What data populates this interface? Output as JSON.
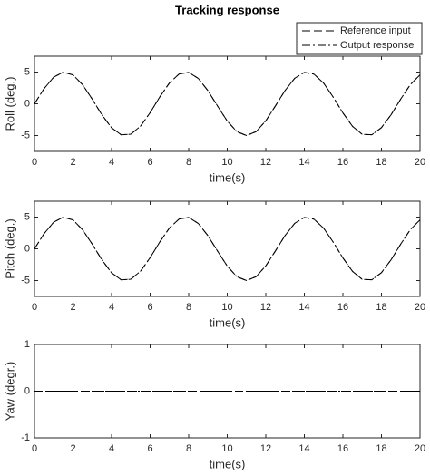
{
  "chart_data": [
    {
      "type": "line",
      "title": "Tracking response",
      "xlabel": "time(s)",
      "ylabel": "Roll (deg.)",
      "xlim": [
        0,
        20
      ],
      "ylim": [
        -7.5,
        7.5
      ],
      "xticks": [
        0,
        2,
        4,
        6,
        8,
        10,
        12,
        14,
        16,
        18,
        20
      ],
      "yticks": [
        -5,
        0,
        5
      ],
      "legend": "upper right",
      "x": [
        0,
        0.5,
        1,
        1.5,
        2,
        2.5,
        3,
        3.5,
        4,
        4.5,
        5,
        5.5,
        6,
        6.5,
        7,
        7.5,
        8,
        8.5,
        9,
        9.5,
        10,
        10.5,
        11,
        11.5,
        12,
        12.5,
        13,
        13.5,
        14,
        14.5,
        15,
        15.5,
        16,
        16.5,
        17,
        17.5,
        18,
        18.5,
        19,
        19.5,
        20
      ],
      "series": [
        {
          "name": "Reference input",
          "color": "#000000",
          "dash": "dashed",
          "values": [
            0,
            2.4,
            4.21,
            4.99,
            4.55,
            2.99,
            0.71,
            -1.75,
            -3.78,
            -4.89,
            -4.79,
            -3.53,
            -1.4,
            1.08,
            3.28,
            4.69,
            4.95,
            3.99,
            2.06,
            -0.38,
            -2.72,
            -4.39,
            -5.0,
            -4.38,
            -2.68,
            -0.33,
            2.1,
            4.02,
            4.95,
            4.67,
            3.25,
            1.04,
            -1.44,
            -3.56,
            -4.81,
            -4.88,
            -3.75,
            -1.72,
            0.75,
            3.03,
            4.56
          ]
        },
        {
          "name": "Output response",
          "color": "#000000",
          "dash": "dashdot",
          "values": [
            0,
            2.4,
            4.21,
            4.99,
            4.55,
            2.99,
            0.71,
            -1.75,
            -3.78,
            -4.89,
            -4.79,
            -3.53,
            -1.4,
            1.08,
            3.28,
            4.69,
            4.95,
            3.99,
            2.06,
            -0.38,
            -2.72,
            -4.39,
            -5.0,
            -4.38,
            -2.68,
            -0.33,
            2.1,
            4.02,
            4.95,
            4.67,
            3.25,
            1.04,
            -1.44,
            -3.56,
            -4.81,
            -4.88,
            -3.75,
            -1.72,
            0.75,
            3.03,
            4.56
          ]
        }
      ]
    },
    {
      "type": "line",
      "xlabel": "time(s)",
      "ylabel": "Pitch (deg.)",
      "xlim": [
        0,
        20
      ],
      "ylim": [
        -7.5,
        7.5
      ],
      "xticks": [
        0,
        2,
        4,
        6,
        8,
        10,
        12,
        14,
        16,
        18,
        20
      ],
      "yticks": [
        -5,
        0,
        5
      ],
      "x": [
        0,
        0.5,
        1,
        1.5,
        2,
        2.5,
        3,
        3.5,
        4,
        4.5,
        5,
        5.5,
        6,
        6.5,
        7,
        7.5,
        8,
        8.5,
        9,
        9.5,
        10,
        10.5,
        11,
        11.5,
        12,
        12.5,
        13,
        13.5,
        14,
        14.5,
        15,
        15.5,
        16,
        16.5,
        17,
        17.5,
        18,
        18.5,
        19,
        19.5,
        20
      ],
      "series": [
        {
          "color": "#000000",
          "dash": "dashed",
          "values": [
            0,
            2.4,
            4.21,
            4.99,
            4.55,
            2.99,
            0.71,
            -1.75,
            -3.78,
            -4.89,
            -4.79,
            -3.53,
            -1.4,
            1.08,
            3.28,
            4.69,
            4.95,
            3.99,
            2.06,
            -0.38,
            -2.72,
            -4.39,
            -5.0,
            -4.38,
            -2.68,
            -0.33,
            2.1,
            4.02,
            4.95,
            4.67,
            3.25,
            1.04,
            -1.44,
            -3.56,
            -4.81,
            -4.88,
            -3.75,
            -1.72,
            0.75,
            3.03,
            4.56
          ]
        },
        {
          "color": "#000000",
          "dash": "dashdot",
          "values": [
            0,
            2.4,
            4.21,
            4.99,
            4.55,
            2.99,
            0.71,
            -1.75,
            -3.78,
            -4.89,
            -4.79,
            -3.53,
            -1.4,
            1.08,
            3.28,
            4.69,
            4.95,
            3.99,
            2.06,
            -0.38,
            -2.72,
            -4.39,
            -5.0,
            -4.38,
            -2.68,
            -0.33,
            2.1,
            4.02,
            4.95,
            4.67,
            3.25,
            1.04,
            -1.44,
            -3.56,
            -4.81,
            -4.88,
            -3.75,
            -1.72,
            0.75,
            3.03,
            4.56
          ]
        }
      ]
    },
    {
      "type": "line",
      "xlabel": "time(s)",
      "ylabel": "Yaw (degr.)",
      "xlim": [
        0,
        20
      ],
      "ylim": [
        -1,
        1
      ],
      "xticks": [
        0,
        2,
        4,
        6,
        8,
        10,
        12,
        14,
        16,
        18,
        20
      ],
      "yticks": [
        -1,
        0,
        1
      ],
      "x": [
        0,
        0.5,
        1,
        1.5,
        2,
        2.5,
        3,
        3.5,
        4,
        4.5,
        5,
        5.5,
        6,
        6.5,
        7,
        7.5,
        8,
        8.5,
        9,
        9.5,
        10,
        10.5,
        11,
        11.5,
        12,
        12.5,
        13,
        13.5,
        14,
        14.5,
        15,
        15.5,
        16,
        16.5,
        17,
        17.5,
        18,
        18.5,
        19,
        19.5,
        20
      ],
      "series": [
        {
          "color": "#000000",
          "dash": "dashed",
          "values": [
            0,
            0,
            0,
            0,
            0,
            0,
            0,
            0,
            0,
            0,
            0,
            0,
            0,
            0,
            0,
            0,
            0,
            0,
            0,
            0,
            0,
            0,
            0,
            0,
            0,
            0,
            0,
            0,
            0,
            0,
            0,
            0,
            0,
            0,
            0,
            0,
            0,
            0,
            0,
            0,
            0
          ]
        },
        {
          "color": "#000000",
          "dash": "dashdot",
          "values": [
            0,
            0,
            0,
            0,
            0,
            0,
            0,
            0,
            0,
            0,
            0,
            0,
            0,
            0,
            0,
            0,
            0,
            0,
            0,
            0,
            0,
            0,
            0,
            0,
            0,
            0,
            0,
            0,
            0,
            0,
            0,
            0,
            0,
            0,
            0,
            0,
            0,
            0,
            0,
            0,
            0
          ]
        }
      ]
    }
  ]
}
